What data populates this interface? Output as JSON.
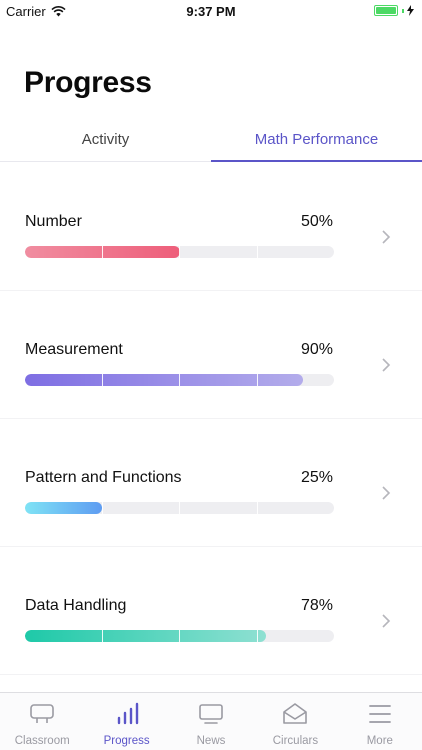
{
  "status_bar": {
    "carrier": "Carrier",
    "time": "9:37 PM"
  },
  "page": {
    "title": "Progress"
  },
  "tabs": [
    {
      "label": "Activity",
      "active": false
    },
    {
      "label": "Math Performance",
      "active": true
    }
  ],
  "accent_color": "#5b55c8",
  "performance": [
    {
      "label": "Number",
      "value": "50%",
      "fraction": 0.5,
      "gradient": [
        "#f08da0",
        "#ee5e7a"
      ]
    },
    {
      "label": "Measurement",
      "value": "90%",
      "fraction": 0.9,
      "gradient": [
        "#7e6ee3",
        "#b3aceb"
      ]
    },
    {
      "label": "Pattern and Functions",
      "value": "25%",
      "fraction": 0.25,
      "gradient": [
        "#7fe3f5",
        "#5e9cf2"
      ]
    },
    {
      "label": "Data Handling",
      "value": "78%",
      "fraction": 0.78,
      "gradient": [
        "#1ec9a8",
        "#8fe0d2"
      ]
    }
  ],
  "tabbar": [
    {
      "label": "Classroom",
      "icon": "classroom-icon",
      "active": false
    },
    {
      "label": "Progress",
      "icon": "progress-icon",
      "active": true
    },
    {
      "label": "News",
      "icon": "news-icon",
      "active": false
    },
    {
      "label": "Circulars",
      "icon": "circulars-icon",
      "active": false
    },
    {
      "label": "More",
      "icon": "more-icon",
      "active": false
    }
  ]
}
